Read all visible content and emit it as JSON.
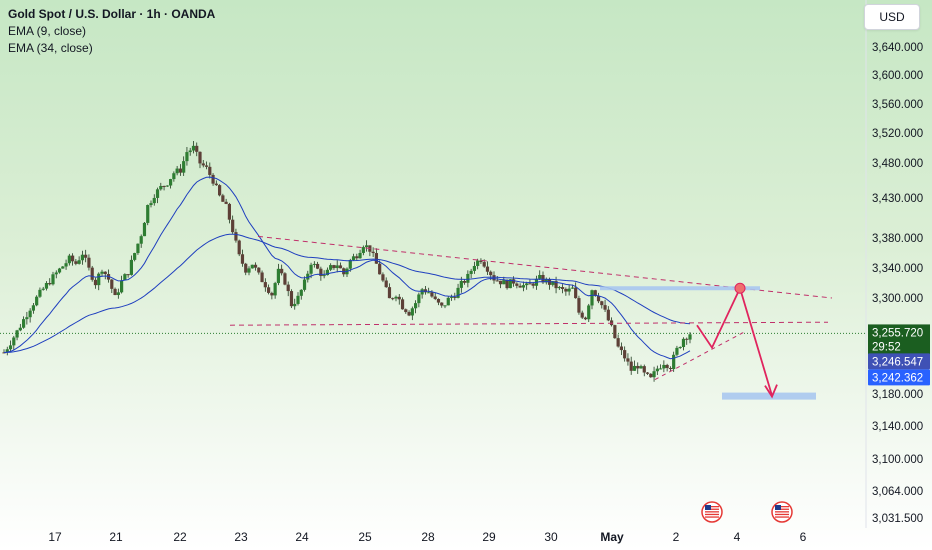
{
  "header": {
    "title": "Gold Spot / U.S. Dollar · 1h · OANDA",
    "ema_fast": "EMA (9, close)",
    "ema_slow": "EMA (34, close)",
    "currency": "USD"
  },
  "colors": {
    "price_tag": "#1b5e20",
    "ema_fast_tag": "#3f51b5",
    "ema_slow_tag": "#2962ff",
    "ema_line": "#1f3fbf",
    "pattern_lines": "#c0306a",
    "projection": "#e0245e",
    "zone": "#a9c7f0"
  },
  "chart_data": {
    "type": "candlestick",
    "title": "Gold Spot / U.S. Dollar · 1h · OANDA",
    "y_axis": {
      "ticks": [
        "3,640.000",
        "3,600.000",
        "3,560.000",
        "3,520.000",
        "3,480.000",
        "3,430.000",
        "3,380.000",
        "3,340.000",
        "3,300.000",
        "3,180.000",
        "3,140.000",
        "3,100.000",
        "3,064.000",
        "3,031.500"
      ],
      "ylim": [
        3020,
        3680
      ],
      "currency": "USD"
    },
    "x_axis": {
      "ticks": [
        "17",
        "21",
        "22",
        "23",
        "24",
        "25",
        "28",
        "29",
        "30",
        "May",
        "2",
        "4",
        "6"
      ],
      "bold_tick": "May"
    },
    "indicators": [
      "EMA (9, close)",
      "EMA (34, close)"
    ],
    "price_path": [
      [
        0,
        3232
      ],
      [
        2,
        3258
      ],
      [
        4,
        3288
      ],
      [
        6,
        3312
      ],
      [
        8,
        3333
      ],
      [
        10,
        3352
      ],
      [
        11,
        3346
      ],
      [
        12,
        3360
      ],
      [
        13,
        3338
      ],
      [
        14,
        3320
      ],
      [
        15,
        3340
      ],
      [
        16,
        3325
      ],
      [
        17,
        3300
      ],
      [
        18,
        3322
      ],
      [
        19,
        3335
      ],
      [
        20,
        3360
      ],
      [
        21,
        3385
      ],
      [
        22,
        3420
      ],
      [
        23,
        3435
      ],
      [
        24,
        3445
      ],
      [
        25,
        3452
      ],
      [
        26,
        3466
      ],
      [
        27,
        3470
      ],
      [
        28,
        3495
      ],
      [
        29,
        3500
      ],
      [
        30,
        3480
      ],
      [
        31,
        3472
      ],
      [
        32,
        3455
      ],
      [
        33,
        3432
      ],
      [
        34,
        3418
      ],
      [
        35,
        3390
      ],
      [
        36,
        3355
      ],
      [
        37,
        3338
      ],
      [
        38,
        3346
      ],
      [
        39,
        3330
      ],
      [
        40,
        3318
      ],
      [
        41,
        3305
      ],
      [
        42,
        3335
      ],
      [
        43,
        3322
      ],
      [
        44,
        3292
      ],
      [
        45,
        3300
      ],
      [
        46,
        3320
      ],
      [
        47,
        3348
      ],
      [
        48,
        3338
      ],
      [
        49,
        3328
      ],
      [
        50,
        3340
      ],
      [
        51,
        3345
      ],
      [
        52,
        3332
      ],
      [
        53,
        3350
      ],
      [
        54,
        3358
      ],
      [
        55,
        3372
      ],
      [
        56,
        3365
      ],
      [
        57,
        3345
      ],
      [
        58,
        3322
      ],
      [
        59,
        3298
      ],
      [
        60,
        3306
      ],
      [
        61,
        3290
      ],
      [
        62,
        3282
      ],
      [
        63,
        3294
      ],
      [
        64,
        3312
      ],
      [
        65,
        3308
      ],
      [
        66,
        3296
      ],
      [
        67,
        3288
      ],
      [
        68,
        3298
      ],
      [
        69,
        3305
      ],
      [
        70,
        3318
      ],
      [
        71,
        3328
      ],
      [
        72,
        3346
      ],
      [
        73,
        3352
      ],
      [
        74,
        3340
      ],
      [
        75,
        3326
      ],
      [
        76,
        3322
      ],
      [
        77,
        3318
      ],
      [
        78,
        3322
      ],
      [
        79,
        3318
      ],
      [
        80,
        3315
      ],
      [
        81,
        3320
      ],
      [
        82,
        3326
      ],
      [
        83,
        3322
      ],
      [
        84,
        3318
      ],
      [
        85,
        3312
      ],
      [
        86,
        3308
      ],
      [
        87,
        3312
      ],
      [
        88,
        3282
      ],
      [
        89,
        3276
      ],
      [
        90,
        3312
      ],
      [
        91,
        3300
      ],
      [
        92,
        3282
      ],
      [
        93,
        3262
      ],
      [
        94,
        3238
      ],
      [
        95,
        3226
      ],
      [
        96,
        3210
      ],
      [
        97,
        3216
      ],
      [
        98,
        3204
      ],
      [
        99,
        3198
      ],
      [
        100,
        3212
      ],
      [
        101,
        3220
      ],
      [
        102,
        3215
      ],
      [
        103,
        3235
      ],
      [
        104,
        3250
      ],
      [
        105,
        3256
      ]
    ],
    "last_price": "3,255.720",
    "countdown": "29:52",
    "ema_fast_value": "3,246.547",
    "ema_slow_value": "3,242.362",
    "annotations": {
      "descending_trendline": [
        [
          3382,
          3302
        ]
      ],
      "support_line": 3266,
      "resistance_zone": 3313,
      "target_zone": 3178,
      "projection_path": [
        3266,
        3238,
        3313,
        3178
      ]
    }
  },
  "events": {
    "icons": [
      "us-flag-icon",
      "us-flag-icon"
    ]
  }
}
